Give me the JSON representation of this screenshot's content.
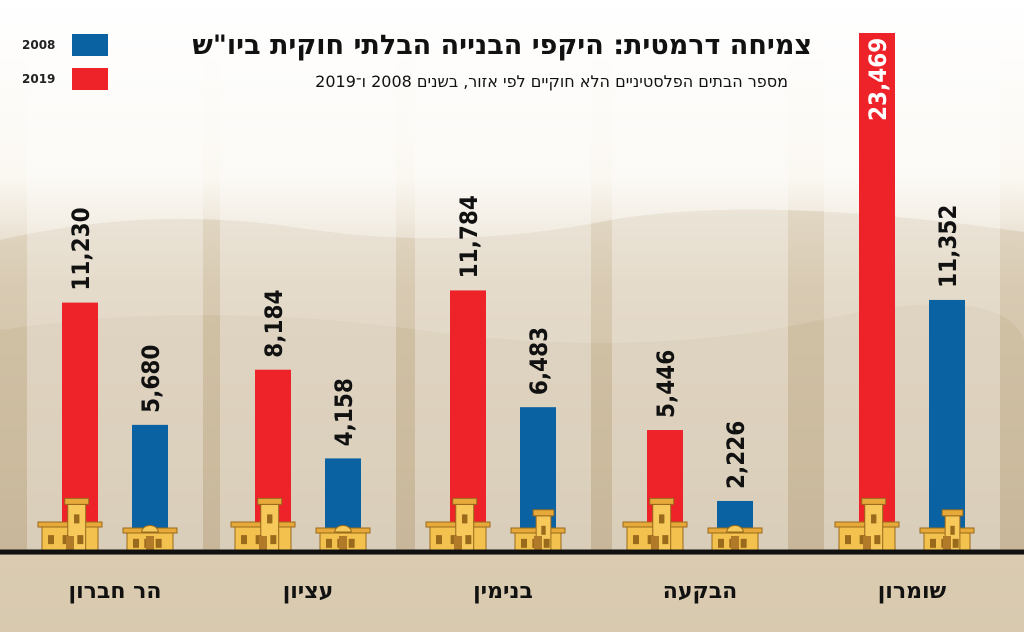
{
  "chart_data": {
    "type": "bar",
    "title": "צמיחה דרמטית: היקפי הבנייה הבלתי חוקית ביו\"ש",
    "subtitle": "מספר הבתים הפלסטיניים הלא חוקיים לפי אזור, בשנים 2008 ו־2019",
    "categories": [
      "הר חברון",
      "עציון",
      "בנימין",
      "הבקעה",
      "שומרון"
    ],
    "series": [
      {
        "name": "2019",
        "color": "#ee2229",
        "values": [
          11230,
          8184,
          11784,
          5446,
          23469
        ],
        "labels": [
          "11,230",
          "8,184",
          "11,784",
          "5,446",
          "23,469"
        ]
      },
      {
        "name": "2008",
        "color": "#0a62a3",
        "values": [
          5680,
          4158,
          6483,
          2226,
          11352
        ],
        "labels": [
          "5,680",
          "4,158",
          "6,483",
          "2,226",
          "11,352"
        ]
      }
    ],
    "legend": [
      {
        "name": "2008",
        "color": "#0a62a3"
      },
      {
        "name": "2019",
        "color": "#ee2229"
      }
    ],
    "ylim": [
      0,
      23469
    ],
    "grid": false,
    "legend_position": "top-left",
    "xlabel": "",
    "ylabel": ""
  }
}
